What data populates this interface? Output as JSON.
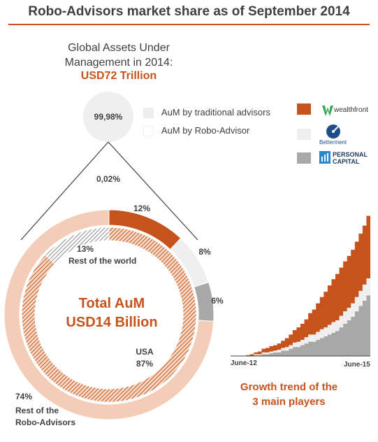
{
  "title": "Robo-Advisors market share as of September 2014",
  "global_aum": {
    "label_line1": "Global Assets Under",
    "label_line2": "Management in 2014:",
    "value": "USD72 Trillion"
  },
  "colors": {
    "accent": "#c6531b",
    "light_peach": "#f4cdb8",
    "light_grey": "#efefef",
    "mid_grey": "#a8a8a8",
    "text": "#404040"
  },
  "legend_top": [
    {
      "label": "AuM by traditional advisors",
      "color": "#eeeeee"
    },
    {
      "label": "AuM by Robo-Advisor",
      "color": "#ffffff"
    }
  ],
  "brands": [
    {
      "name": "wealthfront",
      "color": "#c6531b",
      "icon": "wealthfront-logo"
    },
    {
      "name": "Betterment",
      "color": "#efefef",
      "icon": "betterment-gauge-logo"
    },
    {
      "name_line1": "PERSONAL",
      "name_line2": "CAPITAL",
      "color": "#a8a8a8",
      "icon": "personal-capital-logo"
    }
  ],
  "center": {
    "line1": "Total AuM",
    "line2": "USD14 Billion"
  },
  "chart_data": [
    {
      "type": "pie",
      "slices": [
        {
          "label": "AuM by traditional advisors",
          "value": 99.98,
          "value_label": "99,98%"
        },
        {
          "label": "AuM by Robo-Advisor",
          "value": 0.02,
          "value_label": "0,02%"
        }
      ]
    },
    {
      "type": "pie",
      "ring": "outer",
      "slices": [
        {
          "label": "wealthfront",
          "value": 12,
          "value_label": "12%",
          "color": "#c6531b"
        },
        {
          "label": "Betterment",
          "value": 8,
          "value_label": "8%",
          "color": "#efefef"
        },
        {
          "label": "Personal Capital",
          "value": 6,
          "value_label": "6%",
          "color": "#a8a8a8"
        },
        {
          "label": "Rest of the Robo-Advisors",
          "value": 74,
          "value_label": "74%",
          "color": "#f4cdb8"
        }
      ]
    },
    {
      "type": "pie",
      "ring": "inner",
      "slices": [
        {
          "label": "USA",
          "value": 87,
          "value_label": "87%"
        },
        {
          "label": "Rest of the world",
          "value": 13,
          "value_label": "13%"
        }
      ]
    },
    {
      "type": "area",
      "stacked": true,
      "title_line1": "Growth trend of the",
      "title_line2": "3 main players",
      "x_ticks": [
        "June-12",
        "June-15"
      ],
      "x": [
        0,
        1,
        2,
        3,
        4,
        5,
        6,
        7,
        8,
        9,
        10,
        11,
        12,
        13,
        14,
        15,
        16,
        17,
        18,
        19,
        20,
        21,
        22,
        23,
        24,
        25,
        26,
        27,
        28,
        29,
        30,
        31,
        32,
        33,
        34,
        35,
        36
      ],
      "series": [
        {
          "name": "Personal Capital",
          "color": "#a8a8a8",
          "values": [
            0,
            0,
            0,
            0,
            0,
            0,
            0.5,
            0.5,
            1,
            1,
            1.5,
            2,
            2,
            3,
            3,
            4,
            5,
            5,
            6,
            7,
            8,
            8,
            9,
            10,
            11,
            12,
            13,
            14,
            16,
            18,
            20,
            22,
            25,
            28,
            31,
            34,
            37
          ]
        },
        {
          "name": "Betterment",
          "color": "#efefef",
          "values": [
            0,
            0,
            0,
            0,
            0,
            0,
            0.5,
            0.5,
            1,
            1,
            1,
            1,
            1.5,
            1.5,
            2,
            2,
            2.5,
            3,
            3,
            3.5,
            4,
            4,
            4.5,
            5,
            5,
            5.5,
            6,
            6,
            6.5,
            7,
            7,
            7.5,
            8,
            8.5,
            9,
            9.5,
            10
          ]
        },
        {
          "name": "wealthfront",
          "color": "#c6531b",
          "values": [
            0,
            0,
            0,
            0,
            0.5,
            1,
            1,
            1.5,
            2,
            2.5,
            3,
            3,
            3.5,
            4,
            5,
            6,
            7,
            8,
            9,
            10,
            12,
            14,
            16,
            18,
            20,
            22,
            24,
            26,
            27,
            28,
            29,
            30,
            31,
            32,
            33,
            35,
            38
          ]
        }
      ]
    }
  ],
  "labels": {
    "rest_world_pct": "13%",
    "rest_world_name": "Rest of the world",
    "usa_name": "USA",
    "usa_pct": "87%",
    "rest_robo_pct": "74%",
    "rest_robo_line1": "Rest of the",
    "rest_robo_line2": "Robo-Advisors"
  }
}
